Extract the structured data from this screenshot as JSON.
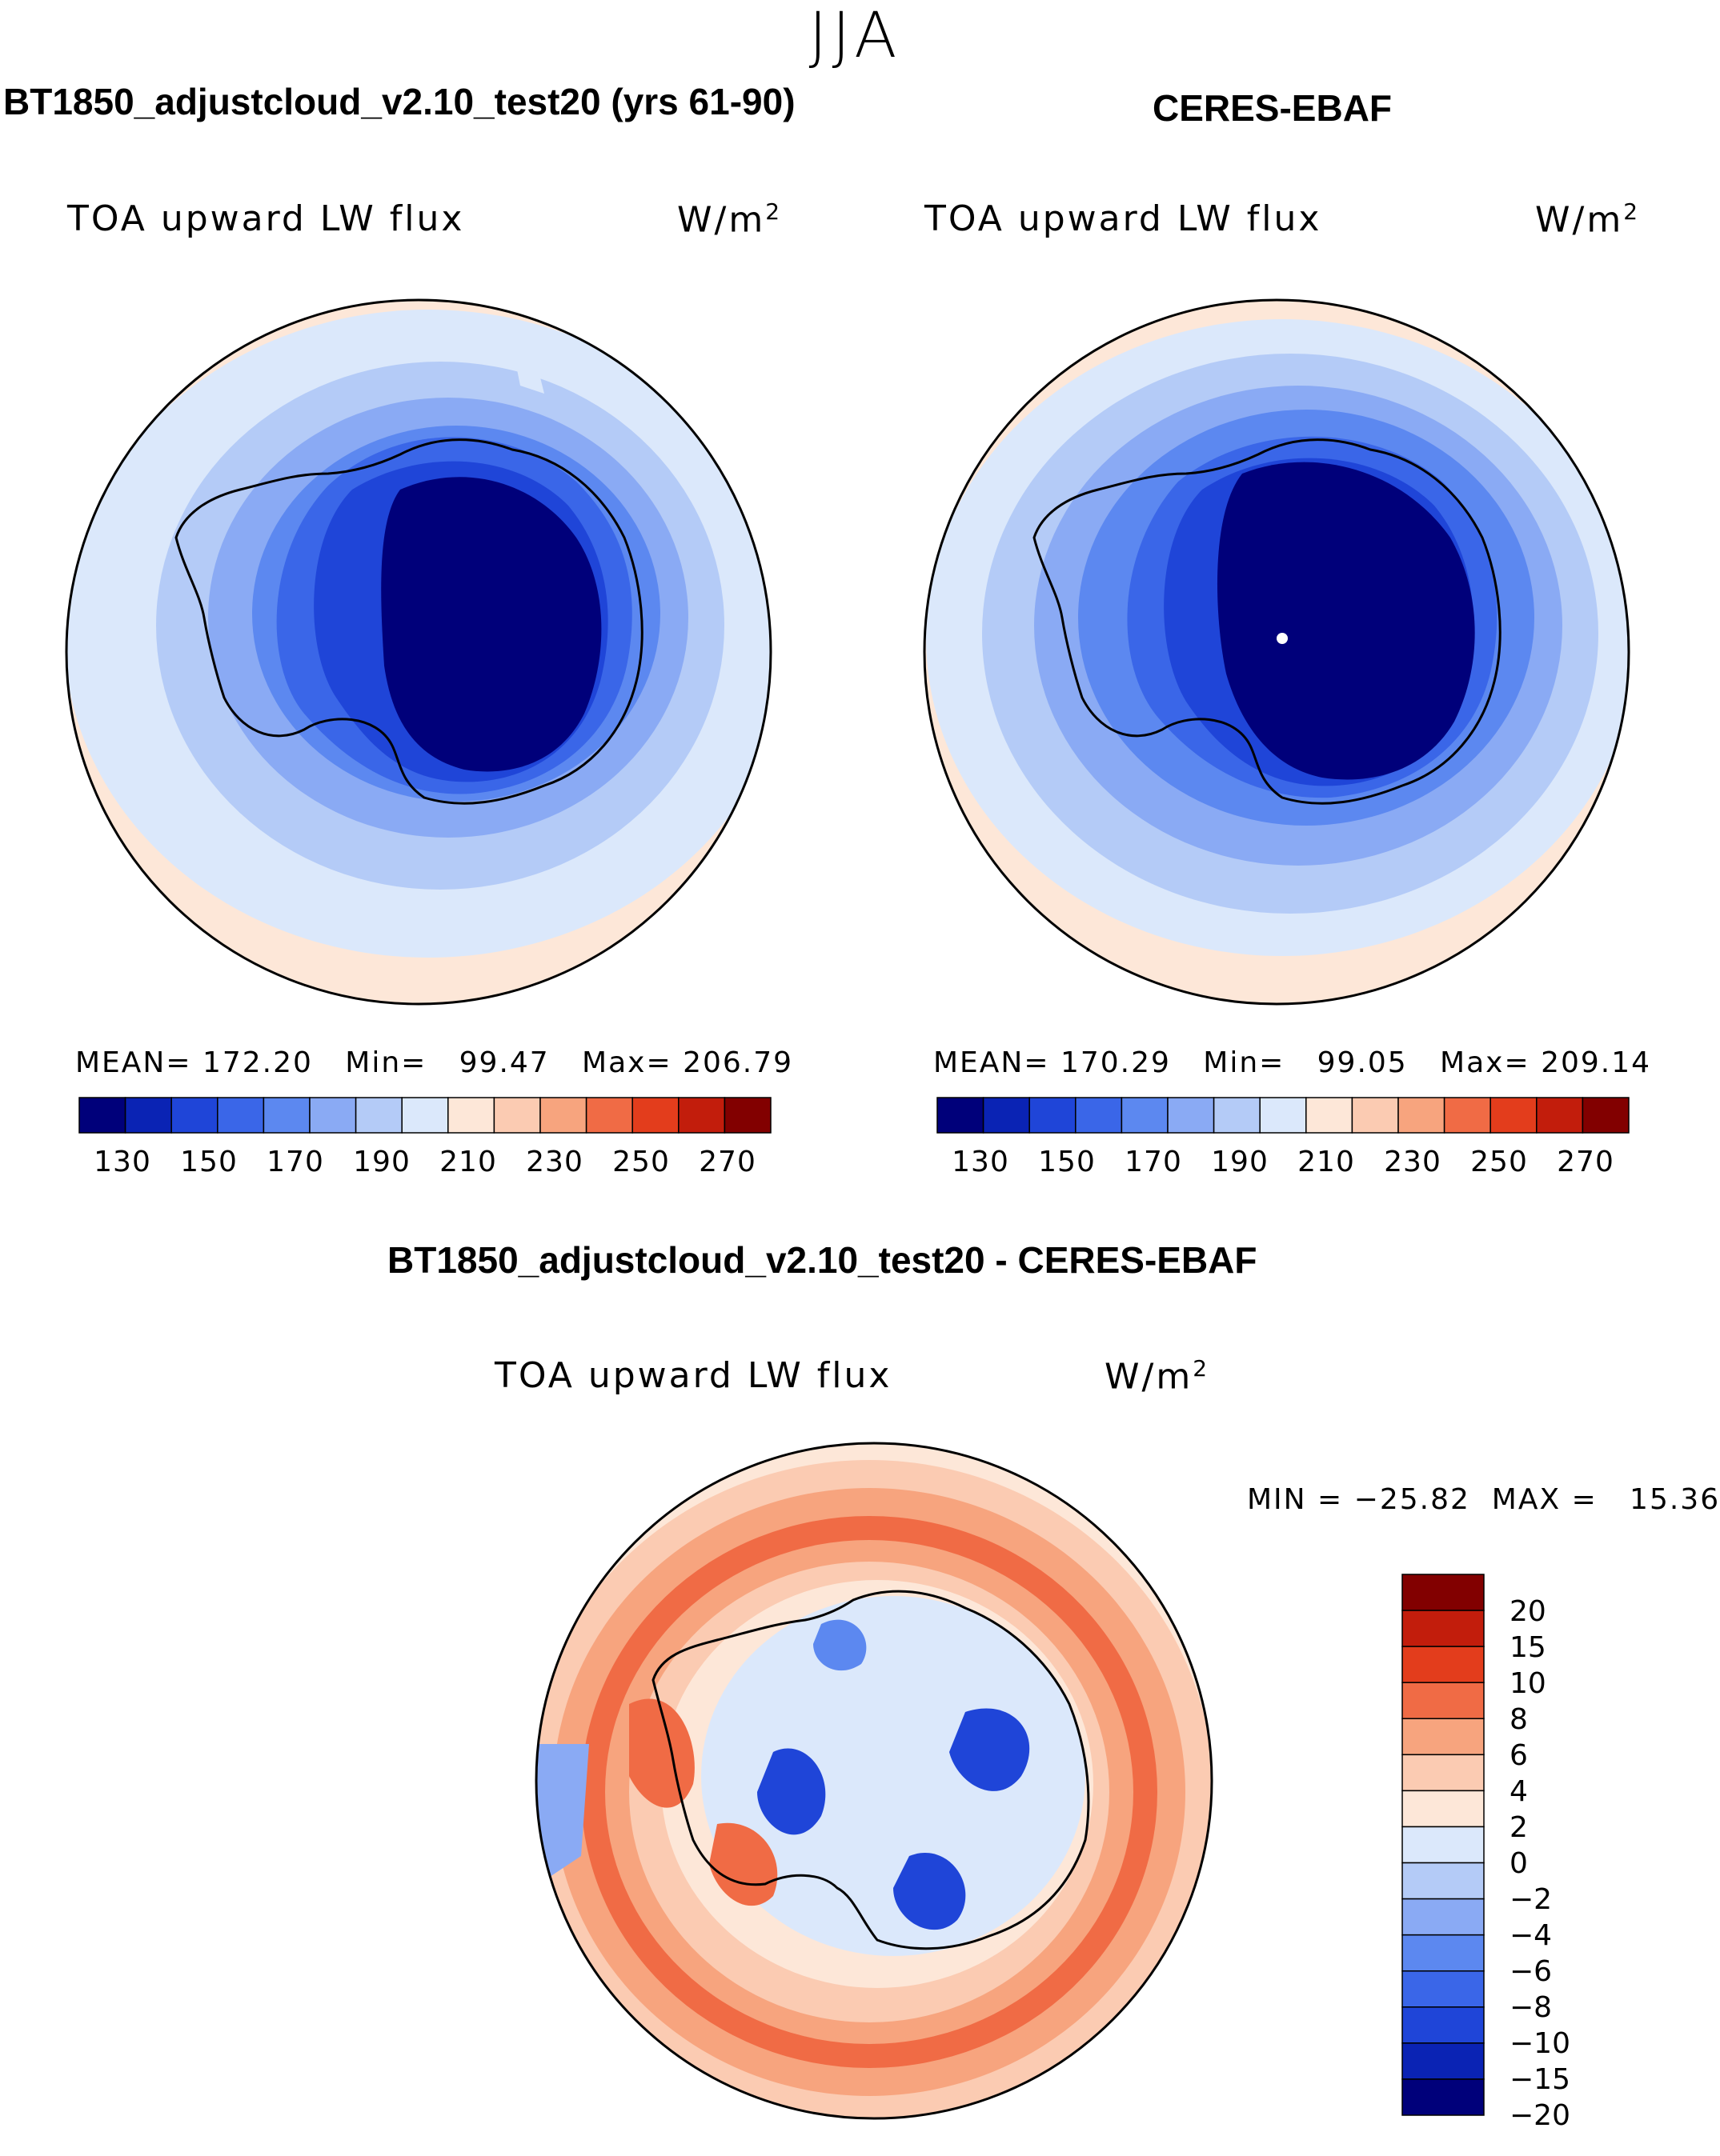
{
  "season": "JJA",
  "panel_left": {
    "title": "BT1850_adjustcloud_v2.10_test20 (yrs 61-90)",
    "variable": "TOA upward LW flux",
    "units": "W/m",
    "units_sup": "2",
    "stats": "MEAN= 172.20   Min=   99.47   Max= 206.79"
  },
  "panel_right": {
    "title": "CERES-EBAF",
    "variable": "TOA upward LW flux",
    "units": "W/m",
    "units_sup": "2",
    "stats": "MEAN= 170.29   Min=   99.05   Max= 209.14"
  },
  "panel_diff": {
    "title": "BT1850_adjustcloud_v2.10_test20 - CERES-EBAF",
    "variable": "TOA upward LW flux",
    "units": "W/m",
    "units_sup": "2",
    "stats": "MIN = −25.82  MAX =   15.36"
  },
  "colorbar_abs": {
    "colors": [
      "#00007a",
      "#0a23b4",
      "#1f45d8",
      "#3a66e8",
      "#5c88f0",
      "#8aaaf4",
      "#b4cbf7",
      "#dbe8fb",
      "#fde7d8",
      "#fbcbb2",
      "#f7a47e",
      "#f06b45",
      "#e33d1c",
      "#c21d0c",
      "#820000"
    ],
    "labels": [
      "130",
      "150",
      "170",
      "190",
      "210",
      "230",
      "250",
      "270"
    ]
  },
  "colorbar_diff": {
    "colors": [
      "#00007a",
      "#0a23b4",
      "#1f45d8",
      "#3a66e8",
      "#5c88f0",
      "#8aaaf4",
      "#b4cbf7",
      "#dbe8fb",
      "#fde7d8",
      "#fbcbb2",
      "#f7a47e",
      "#f06b45",
      "#e33d1c",
      "#c21d0c",
      "#820000"
    ],
    "labels": [
      "20",
      "15",
      "10",
      "8",
      "6",
      "4",
      "2",
      "0",
      "−2",
      "−4",
      "−6",
      "−8",
      "−10",
      "−15",
      "−20"
    ]
  }
}
